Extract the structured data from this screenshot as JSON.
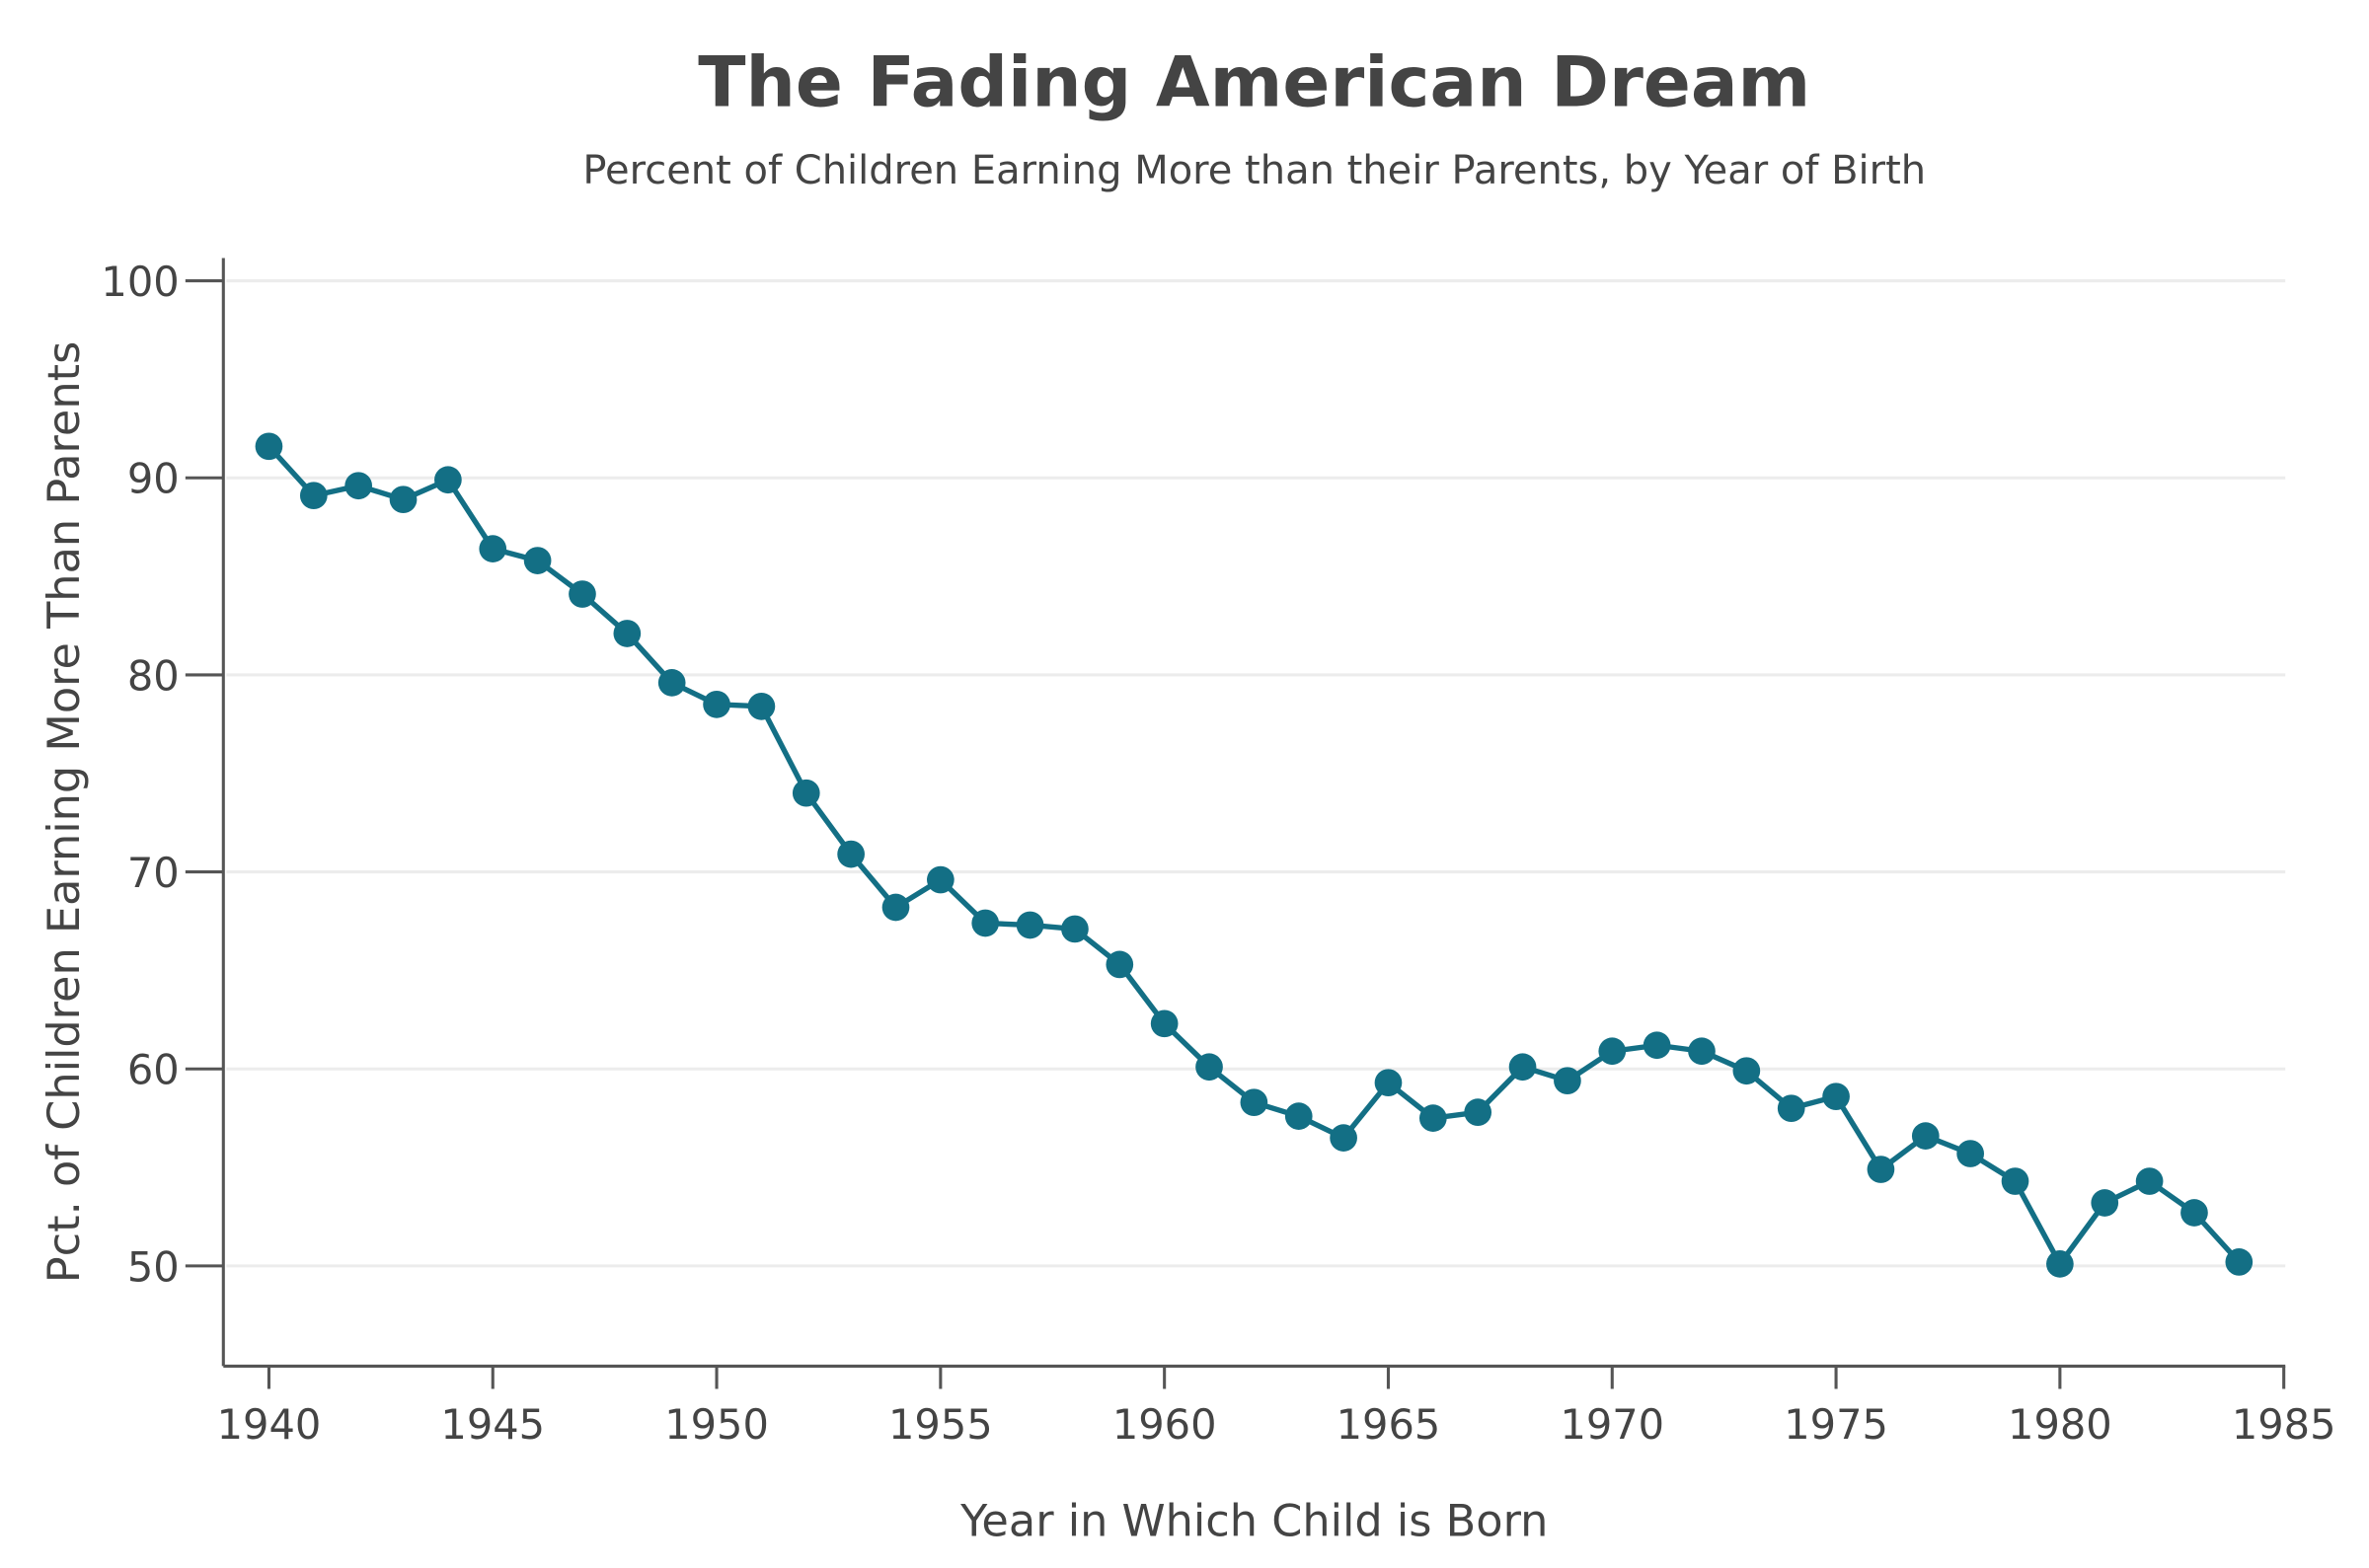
{
  "chart_data": {
    "type": "line",
    "title": "The Fading American Dream",
    "subtitle": "Percent of Children Earning More than their Parents, by Year of Birth",
    "xlabel": "Year in Which Child is Born",
    "ylabel": "Pct. of Children Earning More Than Parents",
    "xlim": [
      1939,
      1985
    ],
    "ylim": [
      45,
      101
    ],
    "xticks": [
      "1940",
      "1945",
      "1950",
      "1955",
      "1960",
      "1965",
      "1970",
      "1975",
      "1980",
      "1985"
    ],
    "yticks": [
      "50",
      "60",
      "70",
      "80",
      "90",
      "100"
    ],
    "grid": "horizontal",
    "color": "#136f85",
    "markers": true,
    "x": [
      1940,
      1941,
      1942,
      1943,
      1944,
      1945,
      1946,
      1947,
      1948,
      1949,
      1950,
      1951,
      1952,
      1953,
      1954,
      1955,
      1956,
      1957,
      1958,
      1959,
      1960,
      1961,
      1962,
      1963,
      1964,
      1965,
      1966,
      1967,
      1968,
      1969,
      1970,
      1971,
      1972,
      1973,
      1974,
      1975,
      1976,
      1977,
      1978,
      1979,
      1980,
      1981,
      1982,
      1983,
      1984
    ],
    "y": [
      91.6,
      89.1,
      89.6,
      88.9,
      89.9,
      86.4,
      85.8,
      84.1,
      82.1,
      79.6,
      78.5,
      78.4,
      74.0,
      70.9,
      68.2,
      69.6,
      67.4,
      67.3,
      67.1,
      65.3,
      62.3,
      60.1,
      58.3,
      57.6,
      56.5,
      59.3,
      57.5,
      57.8,
      60.1,
      59.4,
      60.9,
      61.2,
      60.9,
      59.9,
      58.0,
      58.6,
      54.9,
      56.6,
      55.7,
      54.3,
      50.1,
      53.2,
      54.3,
      52.7,
      50.2
    ]
  }
}
